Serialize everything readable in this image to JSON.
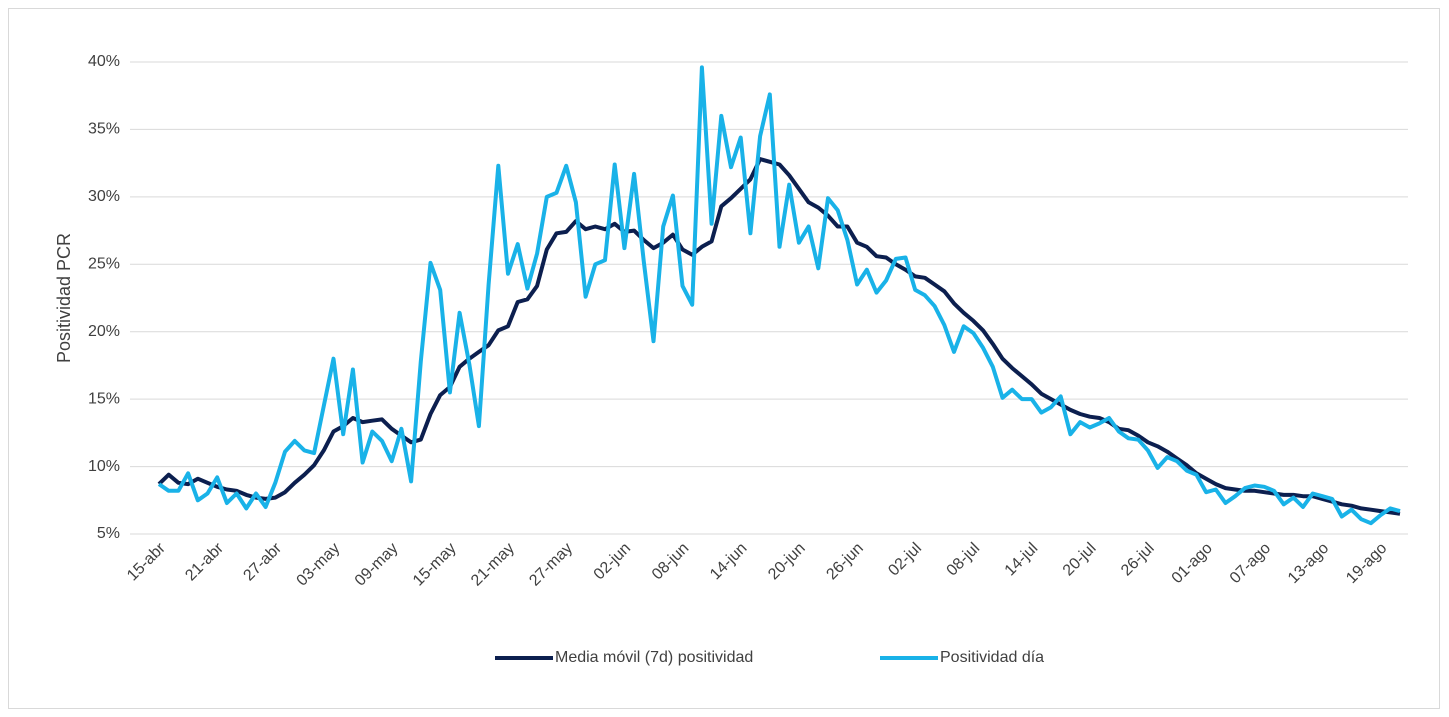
{
  "chart_data": {
    "type": "line",
    "y_label": "Positividad PCR",
    "categories": [
      "15-abr",
      null,
      null,
      null,
      null,
      null,
      "21-abr",
      null,
      null,
      null,
      null,
      null,
      "27-abr",
      null,
      null,
      null,
      null,
      null,
      "03-may",
      null,
      null,
      null,
      null,
      null,
      "09-may",
      null,
      null,
      null,
      null,
      null,
      "15-may",
      null,
      null,
      null,
      null,
      null,
      "21-may",
      null,
      null,
      null,
      null,
      null,
      "27-may",
      null,
      null,
      null,
      null,
      null,
      "02-jun",
      null,
      null,
      null,
      null,
      null,
      "08-jun",
      null,
      null,
      null,
      null,
      null,
      "14-jun",
      null,
      null,
      null,
      null,
      null,
      "20-jun",
      null,
      null,
      null,
      null,
      null,
      "26-jun",
      null,
      null,
      null,
      null,
      null,
      "02-jul",
      null,
      null,
      null,
      null,
      null,
      "08-jul",
      null,
      null,
      null,
      null,
      null,
      "14-jul",
      null,
      null,
      null,
      null,
      null,
      "20-jul",
      null,
      null,
      null,
      null,
      null,
      "26-jul",
      null,
      null,
      null,
      null,
      null,
      "01-ago",
      null,
      null,
      null,
      null,
      null,
      "07-ago",
      null,
      null,
      null,
      null,
      null,
      "13-ago",
      null,
      null,
      null,
      null,
      null,
      "19-ago",
      null,
      null
    ],
    "series": [
      {
        "name": "Media móvil (7d) positividad",
        "color": "#0c1f4f",
        "values": [
          8.7,
          9.4,
          8.8,
          8.7,
          9.1,
          8.8,
          8.5,
          8.3,
          8.2,
          7.9,
          7.7,
          7.6,
          7.7,
          8.1,
          8.8,
          9.4,
          10.1,
          11.2,
          12.6,
          13.0,
          13.6,
          13.3,
          13.4,
          13.5,
          12.8,
          12.3,
          11.8,
          12.0,
          13.9,
          15.3,
          15.9,
          17.4,
          18.0,
          18.5,
          19.0,
          20.1,
          20.4,
          22.2,
          22.4,
          23.4,
          26.1,
          27.3,
          27.4,
          28.2,
          27.6,
          27.8,
          27.6,
          28.0,
          27.4,
          27.5,
          26.8,
          26.2,
          26.6,
          27.2,
          26.1,
          25.7,
          26.3,
          26.7,
          29.3,
          29.9,
          30.6,
          31.3,
          32.8,
          32.6,
          32.4,
          31.6,
          30.6,
          29.6,
          29.2,
          28.6,
          27.8,
          27.8,
          26.6,
          26.3,
          25.6,
          25.5,
          25.0,
          24.6,
          24.1,
          24.0,
          23.5,
          23.0,
          22.1,
          21.4,
          20.8,
          20.1,
          19.1,
          18.0,
          17.3,
          16.7,
          16.1,
          15.4,
          15.0,
          14.6,
          14.2,
          13.9,
          13.7,
          13.6,
          13.3,
          12.8,
          12.7,
          12.3,
          11.8,
          11.5,
          11.1,
          10.6,
          10.1,
          9.5,
          9.1,
          8.7,
          8.4,
          8.3,
          8.2,
          8.2,
          8.1,
          8.0,
          7.9,
          7.9,
          7.8,
          7.8,
          7.6,
          7.4,
          7.2,
          7.1,
          6.9,
          6.8,
          6.7,
          6.6,
          6.5
        ]
      },
      {
        "name": "Positividad día",
        "color": "#19b2e8",
        "values": [
          8.7,
          8.2,
          8.2,
          9.5,
          7.5,
          8.0,
          9.2,
          7.3,
          8.0,
          6.9,
          8.0,
          7.0,
          8.8,
          11.1,
          11.9,
          11.2,
          11.0,
          14.5,
          18.0,
          12.4,
          17.2,
          10.3,
          12.6,
          11.9,
          10.4,
          12.8,
          8.9,
          17.8,
          25.1,
          23.1,
          15.5,
          21.4,
          17.6,
          13.0,
          23.5,
          32.3,
          24.3,
          26.5,
          23.2,
          25.8,
          30.0,
          30.3,
          32.3,
          29.6,
          22.6,
          25.0,
          25.3,
          32.4,
          26.2,
          31.7,
          25.2,
          19.3,
          27.8,
          30.1,
          23.4,
          22.0,
          39.6,
          28.0,
          36.0,
          32.2,
          34.4,
          27.3,
          34.5,
          37.6,
          26.3,
          30.9,
          26.6,
          27.8,
          24.7,
          29.9,
          29.0,
          26.8,
          23.5,
          24.6,
          22.9,
          23.8,
          25.4,
          25.5,
          23.1,
          22.7,
          21.9,
          20.5,
          18.5,
          20.4,
          19.9,
          18.8,
          17.4,
          15.1,
          15.7,
          15.0,
          15.0,
          14.0,
          14.4,
          15.2,
          12.4,
          13.3,
          12.9,
          13.2,
          13.6,
          12.6,
          12.1,
          12.0,
          11.2,
          9.9,
          10.7,
          10.4,
          9.7,
          9.4,
          8.1,
          8.3,
          7.3,
          7.8,
          8.4,
          8.6,
          8.5,
          8.2,
          7.2,
          7.7,
          7.0,
          8.0,
          7.8,
          7.6,
          6.3,
          6.8,
          6.1,
          5.8,
          6.4,
          6.9,
          6.7
        ]
      }
    ],
    "ylim": [
      5,
      40
    ],
    "yticks": [
      {
        "value": 5,
        "label": "5%"
      },
      {
        "value": 10,
        "label": "10%"
      },
      {
        "value": 15,
        "label": "15%"
      },
      {
        "value": 20,
        "label": "20%"
      },
      {
        "value": 25,
        "label": "25%"
      },
      {
        "value": 30,
        "label": "30%"
      },
      {
        "value": 35,
        "label": "35%"
      },
      {
        "value": 40,
        "label": "40%"
      }
    ],
    "grid": true,
    "legend": "bottom"
  }
}
